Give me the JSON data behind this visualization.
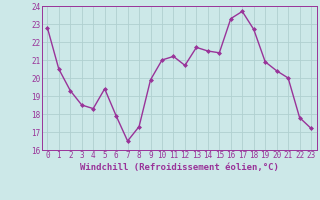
{
  "x": [
    0,
    1,
    2,
    3,
    4,
    5,
    6,
    7,
    8,
    9,
    10,
    11,
    12,
    13,
    14,
    15,
    16,
    17,
    18,
    19,
    20,
    21,
    22,
    23
  ],
  "y": [
    22.8,
    20.5,
    19.3,
    18.5,
    18.3,
    19.4,
    17.9,
    16.5,
    17.3,
    19.9,
    21.0,
    21.2,
    20.7,
    21.7,
    21.5,
    21.4,
    23.3,
    23.7,
    22.7,
    20.9,
    20.4,
    20.0,
    17.8,
    17.2
  ],
  "line_color": "#993399",
  "marker": "D",
  "marker_size": 2.0,
  "bg_color": "#cce8e8",
  "grid_color": "#b0d0d0",
  "xlabel": "Windchill (Refroidissement éolien,°C)",
  "ylim": [
    16,
    24
  ],
  "xlim_min": -0.5,
  "xlim_max": 23.5,
  "yticks": [
    16,
    17,
    18,
    19,
    20,
    21,
    22,
    23,
    24
  ],
  "xticks": [
    0,
    1,
    2,
    3,
    4,
    5,
    6,
    7,
    8,
    9,
    10,
    11,
    12,
    13,
    14,
    15,
    16,
    17,
    18,
    19,
    20,
    21,
    22,
    23
  ],
  "tick_label_size": 5.5,
  "xlabel_size": 6.5,
  "line_width": 1.0
}
